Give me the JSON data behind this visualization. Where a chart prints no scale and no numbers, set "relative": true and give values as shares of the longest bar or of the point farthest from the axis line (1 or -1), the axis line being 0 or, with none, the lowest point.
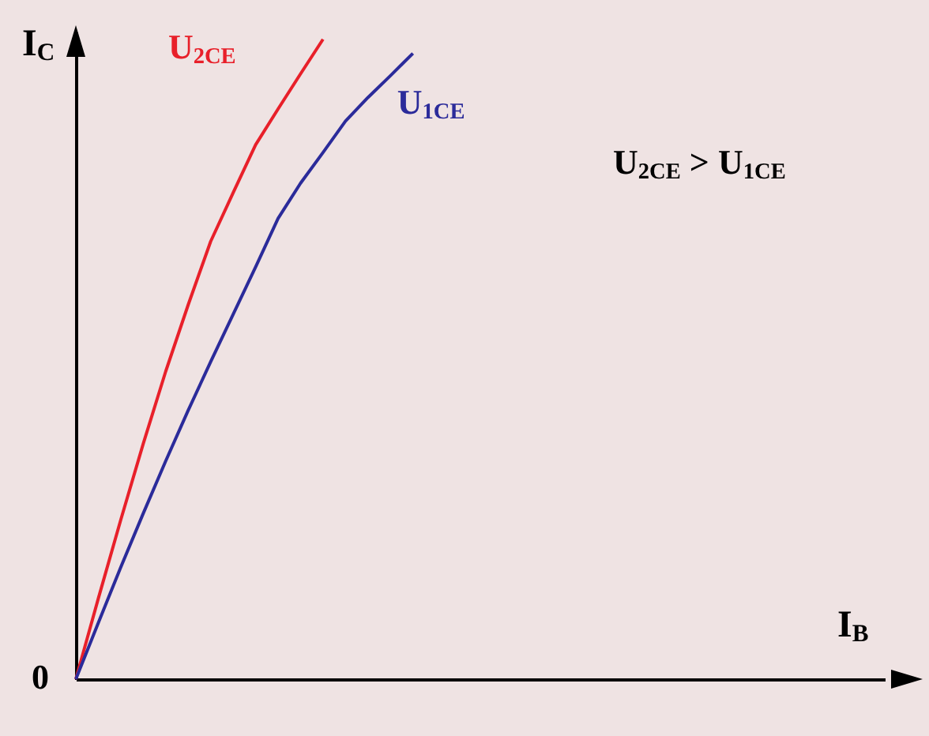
{
  "chart_data": {
    "type": "line",
    "relative": true,
    "xlabel": "I$_{B}$",
    "ylabel": "I$_{C}$",
    "annotations": [
      "0",
      "U$_{2CE}$ > U$_{1CE}$"
    ],
    "categories": [
      null,
      null,
      null,
      null,
      null,
      null,
      null,
      null,
      null,
      null,
      null,
      null,
      null,
      null,
      null,
      null,
      null,
      null,
      null,
      null,
      null,
      null,
      null,
      null,
      null,
      null,
      null,
      null,
      null,
      null,
      null,
      null,
      null,
      null,
      null,
      null,
      null
    ],
    "series": [
      {
        "name": "U$_{2CE}$",
        "color": "#e8202a",
        "values": [
          0,
          0.126,
          0.249,
          0.368,
          0.481,
          0.585,
          0.684,
          0.76,
          0.835,
          0.891,
          0.946,
          1,
          null,
          null,
          null,
          null,
          null,
          null,
          null,
          null,
          null,
          null,
          null,
          null,
          null,
          null,
          null,
          null,
          null,
          null,
          null,
          null,
          null,
          null,
          null,
          null,
          null
        ]
      },
      {
        "name": "U$_{1CE}$",
        "color": "#2b2b9a",
        "values": [
          0,
          0.088,
          0.175,
          0.259,
          0.341,
          0.42,
          0.496,
          0.57,
          0.644,
          0.72,
          0.775,
          0.823,
          0.872,
          0.909,
          0.943,
          0.978,
          null,
          null,
          null,
          null,
          null,
          null,
          null,
          null,
          null,
          null,
          null,
          null,
          null,
          null,
          null,
          null,
          null,
          null,
          null,
          null,
          null
        ]
      }
    ]
  }
}
